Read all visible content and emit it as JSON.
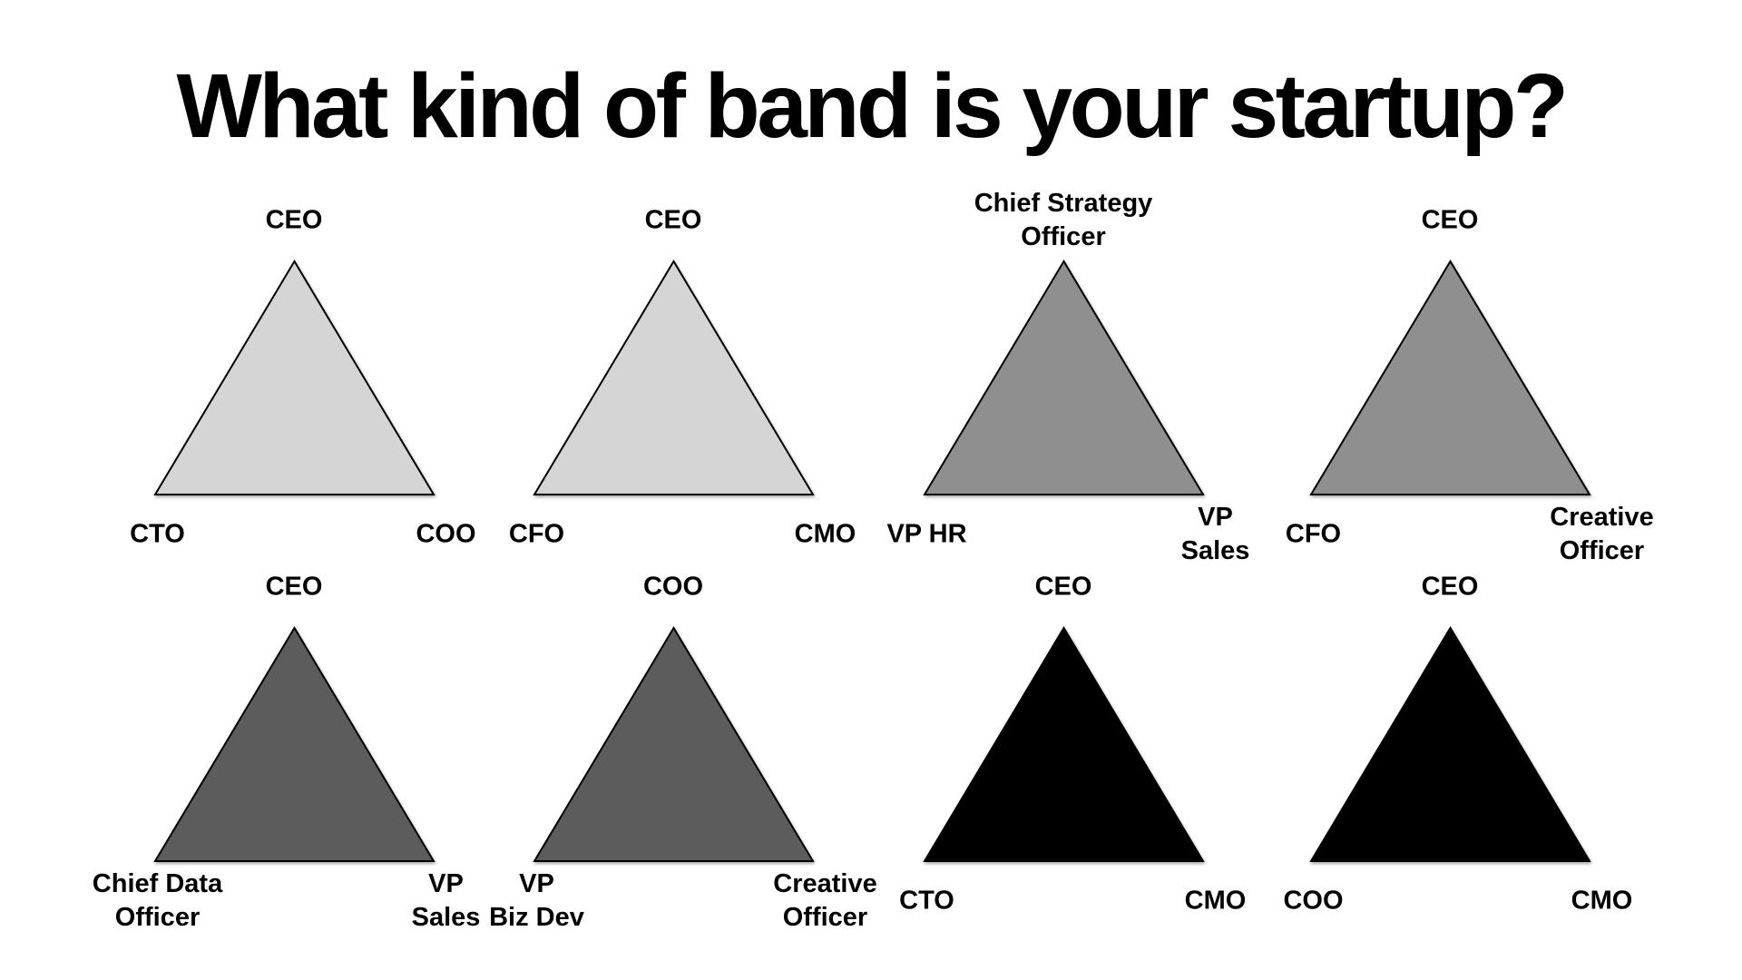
{
  "title": "What kind of band is your startup?",
  "bands": [
    {
      "fill": "#d5d5d5",
      "top": "CEO",
      "left": "CTO",
      "right": "COO"
    },
    {
      "fill": "#d5d5d5",
      "top": "CEO",
      "left": "CFO",
      "right": "CMO"
    },
    {
      "fill": "#8f8f8f",
      "top": "Chief Strategy\nOfficer",
      "left": "VP HR",
      "right": "VP\nSales"
    },
    {
      "fill": "#8f8f8f",
      "top": "CEO",
      "left": "CFO",
      "right": "Creative\nOfficer"
    },
    {
      "fill": "#5c5c5c",
      "top": "CEO",
      "left": "Chief Data\nOfficer",
      "right": "VP\nSales"
    },
    {
      "fill": "#5c5c5c",
      "top": "COO",
      "left": "VP\nBiz Dev",
      "right": "Creative\nOfficer"
    },
    {
      "fill": "#000000",
      "top": "CEO",
      "left": "CTO",
      "right": "CMO"
    },
    {
      "fill": "#000000",
      "top": "CEO",
      "left": "COO",
      "right": "CMO"
    }
  ]
}
